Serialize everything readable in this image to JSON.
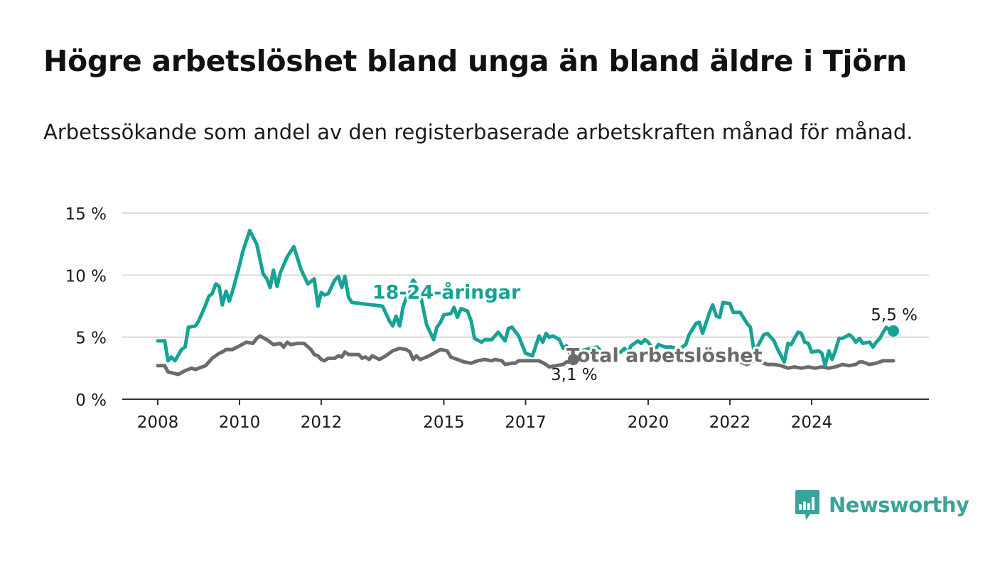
{
  "title": "Högre arbetslöshet bland unga än bland äldre i Tjörn",
  "subtitle": "Arbetssökande som andel av den registerbaserade arbetskraften månad för månad.",
  "brand": {
    "name": "Newsworthy",
    "icon": "bar-chart-speech-bubble-icon",
    "color": "#3aa39a"
  },
  "chart_data": {
    "type": "line",
    "ylim": [
      0,
      15
    ],
    "yticks": [
      {
        "value": 0,
        "label": "0 %"
      },
      {
        "value": 5,
        "label": "5 %"
      },
      {
        "value": 10,
        "label": "10 %"
      },
      {
        "value": 15,
        "label": "15 %"
      }
    ],
    "xlim": [
      2008.0,
      2025.5
    ],
    "xticks": [
      {
        "value": 2008,
        "label": "2008"
      },
      {
        "value": 2010,
        "label": "2010"
      },
      {
        "value": 2012,
        "label": "2012"
      },
      {
        "value": 2015,
        "label": "2015"
      },
      {
        "value": 2017,
        "label": "2017"
      },
      {
        "value": 2020,
        "label": "2020"
      },
      {
        "value": 2022,
        "label": "2022"
      },
      {
        "value": 2024,
        "label": "2024"
      }
    ],
    "grid": true,
    "series": [
      {
        "name": "18-24-åringar",
        "color": "#17a394",
        "end_label": "5,5 %",
        "points": [
          [
            2008.0,
            4.7
          ],
          [
            2008.17,
            4.7
          ],
          [
            2008.25,
            3.1
          ],
          [
            2008.33,
            3.4
          ],
          [
            2008.42,
            3.1
          ],
          [
            2008.58,
            4.0
          ],
          [
            2008.67,
            4.2
          ],
          [
            2008.75,
            5.8
          ],
          [
            2008.92,
            5.9
          ],
          [
            2009.0,
            6.3
          ],
          [
            2009.17,
            7.6
          ],
          [
            2009.25,
            8.3
          ],
          [
            2009.33,
            8.5
          ],
          [
            2009.42,
            9.3
          ],
          [
            2009.5,
            9.1
          ],
          [
            2009.58,
            7.6
          ],
          [
            2009.67,
            8.7
          ],
          [
            2009.75,
            7.9
          ],
          [
            2009.83,
            8.7
          ],
          [
            2010.0,
            10.8
          ],
          [
            2010.08,
            11.9
          ],
          [
            2010.25,
            13.6
          ],
          [
            2010.42,
            12.5
          ],
          [
            2010.58,
            10.1
          ],
          [
            2010.67,
            9.7
          ],
          [
            2010.75,
            9.0
          ],
          [
            2010.83,
            10.4
          ],
          [
            2010.92,
            9.1
          ],
          [
            2011.0,
            10.2
          ],
          [
            2011.17,
            11.5
          ],
          [
            2011.33,
            12.3
          ],
          [
            2011.5,
            10.5
          ],
          [
            2011.67,
            9.3
          ],
          [
            2011.83,
            9.7
          ],
          [
            2011.92,
            7.5
          ],
          [
            2012.0,
            8.6
          ],
          [
            2012.08,
            8.4
          ],
          [
            2012.17,
            8.5
          ],
          [
            2012.33,
            9.6
          ],
          [
            2012.42,
            9.9
          ],
          [
            2012.5,
            9.0
          ],
          [
            2012.58,
            9.9
          ],
          [
            2012.67,
            8.2
          ],
          [
            2012.75,
            7.8
          ],
          [
            2013.5,
            7.5
          ],
          [
            2013.67,
            6.3
          ],
          [
            2013.75,
            5.9
          ],
          [
            2013.83,
            6.7
          ],
          [
            2013.92,
            5.9
          ],
          [
            2014.0,
            7.4
          ],
          [
            2014.17,
            9.0
          ],
          [
            2014.25,
            9.6
          ],
          [
            2014.33,
            9.2
          ],
          [
            2014.42,
            8.5
          ],
          [
            2014.58,
            6.0
          ],
          [
            2014.75,
            4.8
          ],
          [
            2014.83,
            5.8
          ],
          [
            2014.92,
            6.2
          ],
          [
            2015.0,
            6.8
          ],
          [
            2015.17,
            6.9
          ],
          [
            2015.25,
            7.4
          ],
          [
            2015.33,
            6.6
          ],
          [
            2015.42,
            7.3
          ],
          [
            2015.58,
            7.1
          ],
          [
            2015.67,
            6.3
          ],
          [
            2015.75,
            4.9
          ],
          [
            2015.92,
            4.6
          ],
          [
            2016.0,
            4.8
          ],
          [
            2016.17,
            4.8
          ],
          [
            2016.25,
            5.1
          ],
          [
            2016.33,
            5.4
          ],
          [
            2016.5,
            4.7
          ],
          [
            2016.58,
            5.7
          ],
          [
            2016.67,
            5.8
          ],
          [
            2016.83,
            5.1
          ],
          [
            2017.0,
            3.7
          ],
          [
            2017.17,
            3.5
          ],
          [
            2017.33,
            5.1
          ],
          [
            2017.42,
            4.6
          ],
          [
            2017.5,
            5.3
          ],
          [
            2017.58,
            5.0
          ],
          [
            2017.67,
            5.1
          ],
          [
            2017.83,
            4.8
          ],
          [
            2017.92,
            4.1
          ],
          [
            2018.0,
            4.3
          ],
          [
            2018.08,
            3.7
          ],
          [
            2018.75,
            4.2
          ],
          [
            2018.92,
            3.6
          ],
          [
            2019.33,
            3.8
          ],
          [
            2019.42,
            4.1
          ],
          [
            2019.5,
            3.7
          ],
          [
            2019.58,
            4.3
          ],
          [
            2019.75,
            4.7
          ],
          [
            2019.83,
            4.5
          ],
          [
            2019.92,
            4.8
          ],
          [
            2020.0,
            4.6
          ],
          [
            2020.08,
            4.2
          ],
          [
            2020.17,
            4.0
          ],
          [
            2020.25,
            4.4
          ],
          [
            2020.42,
            4.2
          ],
          [
            2020.58,
            4.2
          ],
          [
            2020.75,
            4.0
          ],
          [
            2020.92,
            4.4
          ],
          [
            2021.0,
            5.2
          ],
          [
            2021.17,
            6.1
          ],
          [
            2021.25,
            6.2
          ],
          [
            2021.33,
            5.3
          ],
          [
            2021.5,
            7.0
          ],
          [
            2021.58,
            7.6
          ],
          [
            2021.67,
            6.7
          ],
          [
            2021.75,
            6.6
          ],
          [
            2021.83,
            7.8
          ],
          [
            2022.0,
            7.7
          ],
          [
            2022.08,
            7.0
          ],
          [
            2022.25,
            7.0
          ],
          [
            2022.42,
            6.1
          ],
          [
            2022.5,
            5.8
          ],
          [
            2022.58,
            4.1
          ],
          [
            2022.67,
            4.2
          ],
          [
            2022.83,
            5.2
          ],
          [
            2022.92,
            5.3
          ],
          [
            2023.0,
            5.0
          ],
          [
            2023.08,
            4.7
          ],
          [
            2023.17,
            4.0
          ],
          [
            2023.33,
            3.0
          ],
          [
            2023.42,
            4.5
          ],
          [
            2023.5,
            4.4
          ],
          [
            2023.58,
            4.9
          ],
          [
            2023.67,
            5.4
          ],
          [
            2023.75,
            5.3
          ],
          [
            2023.83,
            4.6
          ],
          [
            2023.92,
            4.5
          ],
          [
            2024.0,
            3.8
          ],
          [
            2024.17,
            3.9
          ],
          [
            2024.25,
            3.7
          ],
          [
            2024.33,
            2.7
          ],
          [
            2024.42,
            3.9
          ],
          [
            2024.5,
            3.2
          ],
          [
            2024.58,
            3.9
          ],
          [
            2024.67,
            4.9
          ],
          [
            2024.75,
            4.9
          ],
          [
            2024.92,
            5.2
          ],
          [
            2025.0,
            5.0
          ],
          [
            2025.08,
            4.6
          ],
          [
            2025.17,
            4.9
          ],
          [
            2025.25,
            4.5
          ],
          [
            2025.42,
            4.6
          ],
          [
            2025.5,
            4.2
          ],
          [
            2025.58,
            4.6
          ],
          [
            2025.67,
            4.9
          ],
          [
            2025.75,
            5.4
          ],
          [
            2025.83,
            5.8
          ],
          [
            2025.92,
            5.5
          ],
          [
            2026.0,
            5.5
          ]
        ]
      },
      {
        "name": "Total arbetslöshet",
        "color": "#6b6b6b",
        "end_label": "3,1 %",
        "points": [
          [
            2008.0,
            2.7
          ],
          [
            2008.17,
            2.7
          ],
          [
            2008.25,
            2.2
          ],
          [
            2008.5,
            2.0
          ],
          [
            2008.67,
            2.3
          ],
          [
            2008.83,
            2.5
          ],
          [
            2008.92,
            2.4
          ],
          [
            2009.17,
            2.7
          ],
          [
            2009.33,
            3.3
          ],
          [
            2009.5,
            3.7
          ],
          [
            2009.58,
            3.8
          ],
          [
            2009.67,
            4.0
          ],
          [
            2009.83,
            4.0
          ],
          [
            2010.0,
            4.3
          ],
          [
            2010.17,
            4.6
          ],
          [
            2010.33,
            4.5
          ],
          [
            2010.42,
            4.9
          ],
          [
            2010.5,
            5.1
          ],
          [
            2010.67,
            4.8
          ],
          [
            2010.83,
            4.4
          ],
          [
            2011.0,
            4.5
          ],
          [
            2011.08,
            4.2
          ],
          [
            2011.17,
            4.6
          ],
          [
            2011.25,
            4.4
          ],
          [
            2011.42,
            4.5
          ],
          [
            2011.58,
            4.5
          ],
          [
            2011.75,
            4.0
          ],
          [
            2011.83,
            3.6
          ],
          [
            2011.92,
            3.5
          ],
          [
            2012.0,
            3.2
          ],
          [
            2012.08,
            3.1
          ],
          [
            2012.17,
            3.3
          ],
          [
            2012.33,
            3.3
          ],
          [
            2012.42,
            3.5
          ],
          [
            2012.5,
            3.4
          ],
          [
            2012.58,
            3.8
          ],
          [
            2012.67,
            3.6
          ],
          [
            2012.92,
            3.6
          ],
          [
            2013.0,
            3.3
          ],
          [
            2013.08,
            3.4
          ],
          [
            2013.17,
            3.2
          ],
          [
            2013.25,
            3.5
          ],
          [
            2013.42,
            3.2
          ],
          [
            2013.58,
            3.5
          ],
          [
            2013.75,
            3.9
          ],
          [
            2013.92,
            4.1
          ],
          [
            2014.08,
            4.0
          ],
          [
            2014.17,
            3.8
          ],
          [
            2014.25,
            3.2
          ],
          [
            2014.33,
            3.5
          ],
          [
            2014.42,
            3.2
          ],
          [
            2014.58,
            3.4
          ],
          [
            2014.75,
            3.7
          ],
          [
            2014.92,
            4.0
          ],
          [
            2015.08,
            3.9
          ],
          [
            2015.17,
            3.4
          ],
          [
            2015.33,
            3.2
          ],
          [
            2015.5,
            3.0
          ],
          [
            2015.67,
            2.9
          ],
          [
            2015.83,
            3.1
          ],
          [
            2016.0,
            3.2
          ],
          [
            2016.17,
            3.1
          ],
          [
            2016.25,
            3.2
          ],
          [
            2016.42,
            3.1
          ],
          [
            2016.5,
            2.8
          ],
          [
            2016.67,
            2.9
          ],
          [
            2016.75,
            2.9
          ],
          [
            2016.83,
            3.1
          ],
          [
            2017.0,
            3.1
          ],
          [
            2017.17,
            3.1
          ],
          [
            2017.33,
            3.1
          ],
          [
            2017.5,
            2.8
          ],
          [
            2017.58,
            2.6
          ],
          [
            2017.75,
            2.7
          ],
          [
            2017.92,
            2.8
          ],
          [
            2018.0,
            3.0
          ],
          [
            2018.08,
            3.0
          ],
          [
            2018.17,
            3.2
          ]
        ]
      },
      {
        "name": "",
        "color": "#6b6b6b",
        "end_label": "",
        "points": [
          [
            2022.0,
            3.8
          ],
          [
            2022.08,
            3.3
          ],
          [
            2022.25,
            3.0
          ],
          [
            2022.42,
            2.8
          ],
          [
            2022.58,
            3.1
          ],
          [
            2022.75,
            3.0
          ],
          [
            2022.92,
            2.8
          ],
          [
            2023.08,
            2.8
          ],
          [
            2023.25,
            2.7
          ],
          [
            2023.42,
            2.5
          ],
          [
            2023.58,
            2.6
          ],
          [
            2023.75,
            2.5
          ],
          [
            2023.92,
            2.6
          ],
          [
            2024.08,
            2.5
          ],
          [
            2024.25,
            2.6
          ],
          [
            2024.42,
            2.5
          ],
          [
            2024.58,
            2.6
          ],
          [
            2024.75,
            2.8
          ],
          [
            2024.92,
            2.7
          ],
          [
            2025.08,
            2.8
          ],
          [
            2025.17,
            3.0
          ],
          [
            2025.25,
            3.0
          ],
          [
            2025.42,
            2.8
          ],
          [
            2025.58,
            2.9
          ],
          [
            2025.75,
            3.1
          ],
          [
            2025.92,
            3.1
          ],
          [
            2026.0,
            3.1
          ]
        ]
      }
    ],
    "annotations": [
      {
        "text": "18-24-åringar",
        "color": "#17a394",
        "x": 2013.25,
        "y": 8.1
      },
      {
        "text": "Total arbetslöshet",
        "color": "#6b6b6b",
        "x": 2018.0,
        "y": 3.0
      }
    ]
  }
}
